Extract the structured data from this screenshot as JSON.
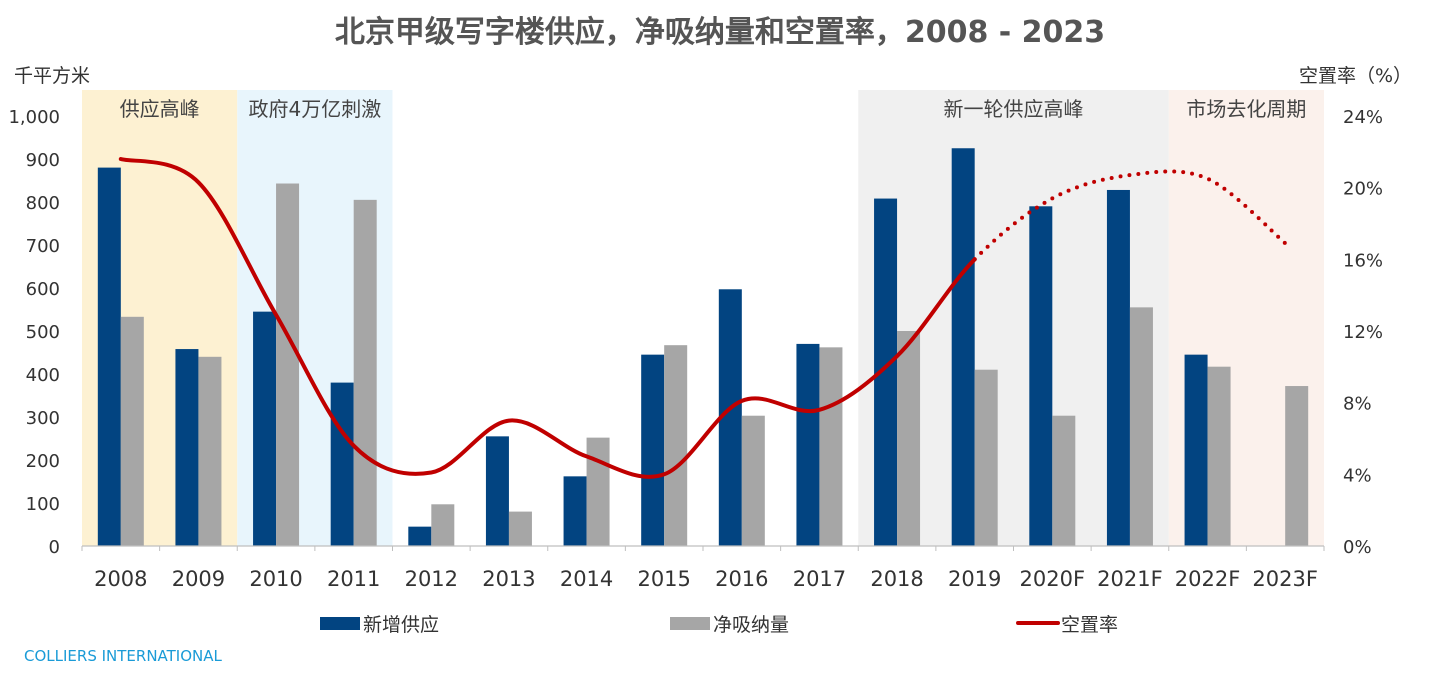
{
  "chart_data": {
    "type": "bar",
    "title": "北京甲级写字楼供应，净吸纳量和空置率，2008 - 2023",
    "ylabel_left": "千平方米",
    "ylabel_right": "空置率（%）",
    "ylim_left": [
      0,
      1000
    ],
    "ylim_right": [
      0,
      24
    ],
    "yticks_left": [
      "0",
      "100",
      "200",
      "300",
      "400",
      "500",
      "600",
      "700",
      "800",
      "900",
      "1,000"
    ],
    "yticks_right": [
      "0%",
      "4%",
      "8%",
      "12%",
      "16%",
      "20%",
      "24%"
    ],
    "categories": [
      "2008",
      "2009",
      "2010",
      "2011",
      "2012",
      "2013",
      "2014",
      "2015",
      "2016",
      "2017",
      "2018",
      "2019",
      "2020F",
      "2021F",
      "2022F",
      "2023F"
    ],
    "series": [
      {
        "name": "新增供应",
        "type": "bar",
        "axis": "left",
        "color": "#024481",
        "values": [
          880,
          458,
          545,
          380,
          45,
          255,
          162,
          445,
          597,
          470,
          808,
          925,
          790,
          828,
          445,
          null
        ]
      },
      {
        "name": "净吸纳量",
        "type": "bar",
        "axis": "left",
        "color": "#a6a6a6",
        "values": [
          533,
          440,
          843,
          805,
          97,
          80,
          252,
          467,
          303,
          462,
          500,
          410,
          303,
          555,
          417,
          372
        ]
      },
      {
        "name": "空置率",
        "type": "line",
        "axis": "right",
        "color": "#c00000",
        "values": [
          21.6,
          20.3,
          12.9,
          5.6,
          4.1,
          7.0,
          5.0,
          4.0,
          8.1,
          7.6,
          10.6,
          16.0,
          19.4,
          20.7,
          20.5,
          16.9
        ],
        "solid_through": "2019",
        "dashed_from": "2019"
      }
    ],
    "periods": [
      {
        "label": "供应高峰",
        "from": "2008",
        "to": "2009",
        "color": "#fdf1d2"
      },
      {
        "label": "政府4万亿刺激",
        "from": "2010",
        "to": "2011",
        "color": "#e8f5fc"
      },
      {
        "label": "新一轮供应高峰",
        "from": "2018",
        "to": "2021F",
        "color": "#f0f0f0"
      },
      {
        "label": "市场去化周期",
        "from": "2022F",
        "to": "2023F",
        "color": "#fbf1ec"
      }
    ],
    "legend_position": "bottom",
    "grid": false
  },
  "footer": {
    "source": "COLLIERS INTERNATIONAL"
  }
}
